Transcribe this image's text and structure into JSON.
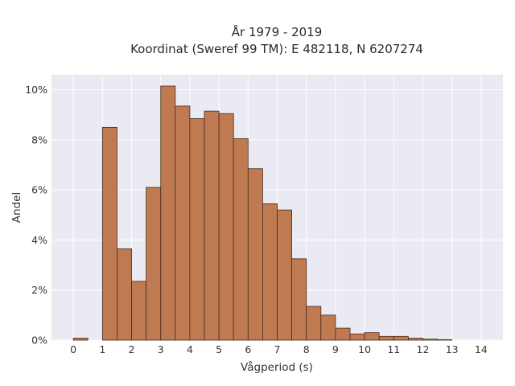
{
  "chart_data": {
    "type": "bar",
    "title": [
      "År 1979 - 2019",
      "Koordinat (Sweref 99 TM): E 482118, N 6207274"
    ],
    "xlabel": "Vågperiod (s)",
    "ylabel": "Andel",
    "bin_width": 0.5,
    "bins": [
      {
        "start": 0.0,
        "value": 0.08
      },
      {
        "start": 1.0,
        "value": 8.5
      },
      {
        "start": 1.5,
        "value": 3.65
      },
      {
        "start": 2.0,
        "value": 2.35
      },
      {
        "start": 2.5,
        "value": 6.1
      },
      {
        "start": 3.0,
        "value": 10.15
      },
      {
        "start": 3.5,
        "value": 9.35
      },
      {
        "start": 4.0,
        "value": 8.85
      },
      {
        "start": 4.5,
        "value": 9.15
      },
      {
        "start": 5.0,
        "value": 9.05
      },
      {
        "start": 5.5,
        "value": 8.05
      },
      {
        "start": 6.0,
        "value": 6.85
      },
      {
        "start": 6.5,
        "value": 5.45
      },
      {
        "start": 7.0,
        "value": 5.2
      },
      {
        "start": 7.5,
        "value": 3.25
      },
      {
        "start": 8.0,
        "value": 1.35
      },
      {
        "start": 8.5,
        "value": 1.0
      },
      {
        "start": 9.0,
        "value": 0.48
      },
      {
        "start": 9.5,
        "value": 0.25
      },
      {
        "start": 10.0,
        "value": 0.3
      },
      {
        "start": 10.5,
        "value": 0.15
      },
      {
        "start": 11.0,
        "value": 0.15
      },
      {
        "start": 11.5,
        "value": 0.08
      },
      {
        "start": 12.0,
        "value": 0.04
      },
      {
        "start": 12.5,
        "value": 0.02
      }
    ],
    "x_ticks": [
      0,
      1,
      2,
      3,
      4,
      5,
      6,
      7,
      8,
      9,
      10,
      11,
      12,
      13,
      14
    ],
    "y_ticks": [
      0,
      2,
      4,
      6,
      8,
      10
    ],
    "y_tick_labels": [
      "0%",
      "2%",
      "4%",
      "6%",
      "8%",
      "10%"
    ],
    "xlim": [
      -0.75,
      14.75
    ],
    "ylim": [
      0,
      10.6
    ],
    "grid": true,
    "colors": {
      "bar_fill": "#c07a52",
      "bar_edge": "#4a2a1a",
      "plot_background": "#eaeaf2",
      "grid": "#ffffff"
    }
  }
}
